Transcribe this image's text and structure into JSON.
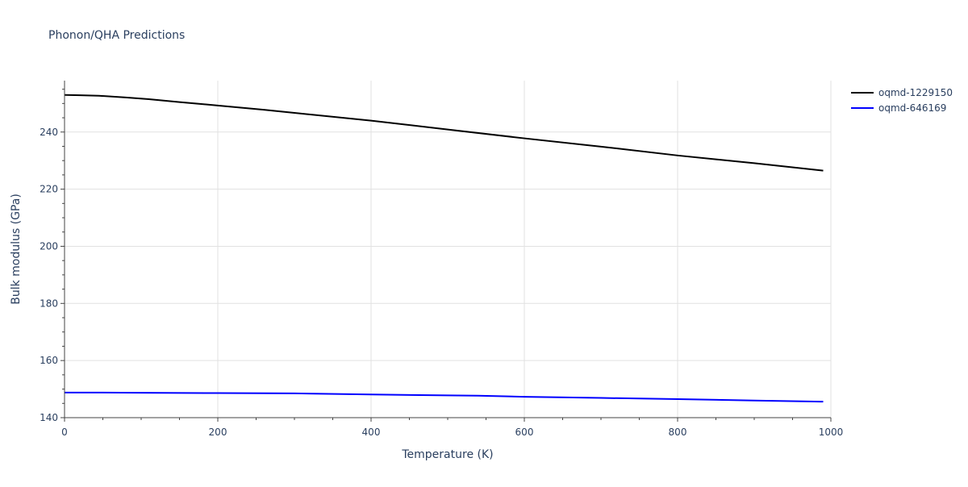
{
  "chart_data": {
    "type": "line",
    "title": "Phonon/QHA Predictions",
    "xlabel": "Temperature (K)",
    "ylabel": "Bulk modulus (GPa)",
    "xlim": [
      0,
      1000
    ],
    "ylim": [
      140,
      258
    ],
    "xticks": [
      0,
      200,
      400,
      600,
      800,
      1000
    ],
    "yticks": [
      140,
      160,
      180,
      200,
      220,
      240
    ],
    "grid": true,
    "legend_position": "top-right",
    "series": [
      {
        "name": "oqmd-1229150",
        "color": "#000000",
        "x": [
          0,
          20,
          45,
          80,
          110,
          150,
          200,
          260,
          300,
          400,
          500,
          600,
          700,
          800,
          900,
          990
        ],
        "y": [
          253.0,
          252.9,
          252.7,
          252.1,
          251.5,
          250.5,
          249.3,
          247.8,
          246.7,
          244.0,
          240.9,
          237.8,
          234.9,
          231.8,
          229.1,
          226.5
        ]
      },
      {
        "name": "oqmd-646169",
        "color": "#0000ff",
        "x": [
          0,
          50,
          100,
          200,
          300,
          400,
          500,
          540,
          600,
          700,
          800,
          900,
          990
        ],
        "y": [
          148.8,
          148.8,
          148.7,
          148.6,
          148.5,
          148.1,
          147.8,
          147.7,
          147.3,
          146.9,
          146.5,
          146.0,
          145.6
        ]
      }
    ]
  }
}
